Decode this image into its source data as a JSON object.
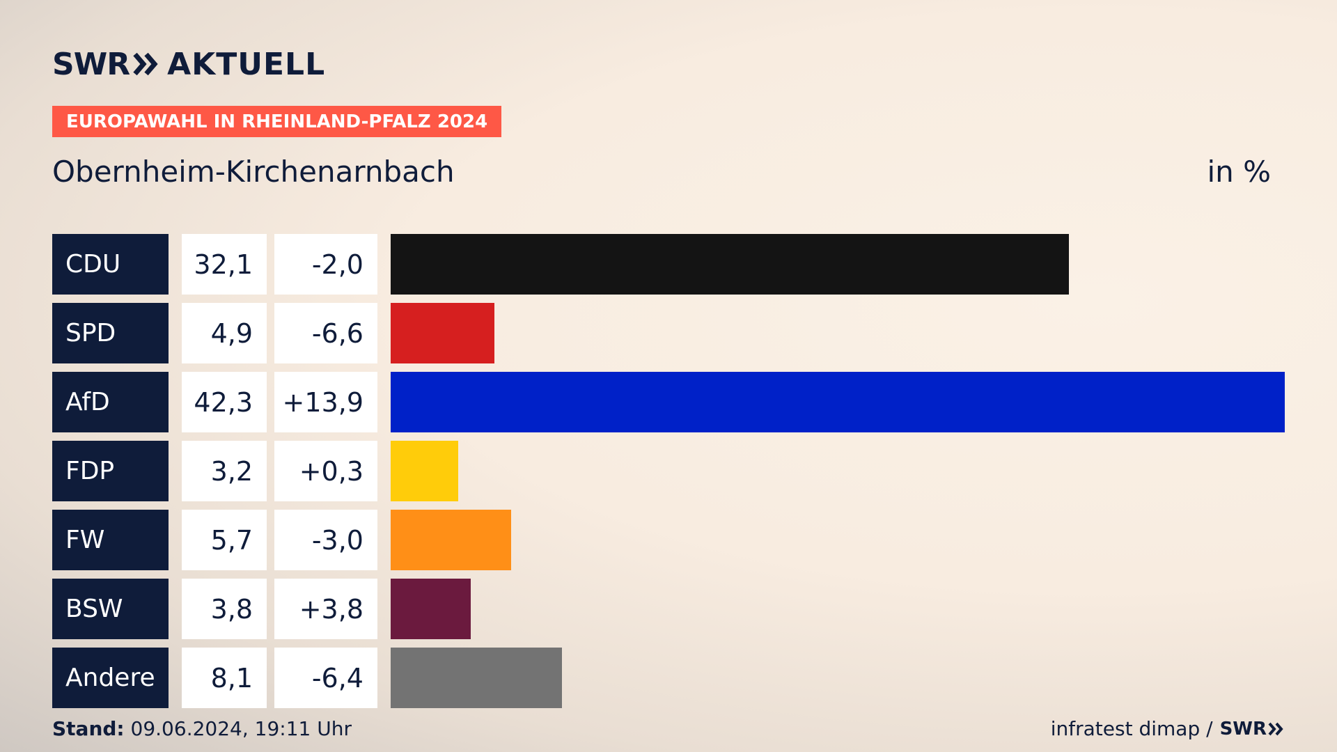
{
  "header": {
    "logo_left": "SWR",
    "logo_right": "AKTUELL",
    "tag": "EUROPAWAHL IN RHEINLAND-PFALZ 2024",
    "region": "Obernheim-Kirchenarnbach",
    "unit": "in %"
  },
  "chart_data": {
    "type": "bar",
    "orientation": "horizontal",
    "categories": [
      "CDU",
      "SPD",
      "AfD",
      "FDP",
      "FW",
      "BSW",
      "Andere"
    ],
    "values": [
      32.1,
      4.9,
      42.3,
      3.2,
      5.7,
      3.8,
      8.1
    ],
    "value_labels": [
      "32,1",
      "4,9",
      "42,3",
      "3,2",
      "5,7",
      "3,8",
      "8,1"
    ],
    "changes": [
      "-2,0",
      "-6,6",
      "+13,9",
      "+0,3",
      "-3,0",
      "+3,8",
      "-6,4"
    ],
    "colors": [
      "#141414",
      "#d61f1f",
      "#0021c8",
      "#ffcc0a",
      "#ff8f17",
      "#6b1a3e",
      "#737373"
    ],
    "unit": "in %"
  },
  "footer": {
    "stand_label": "Stand:",
    "stand_value": "09.06.2024, 19:11 Uhr",
    "source": "infratest dimap /",
    "source_logo": "SWR"
  }
}
